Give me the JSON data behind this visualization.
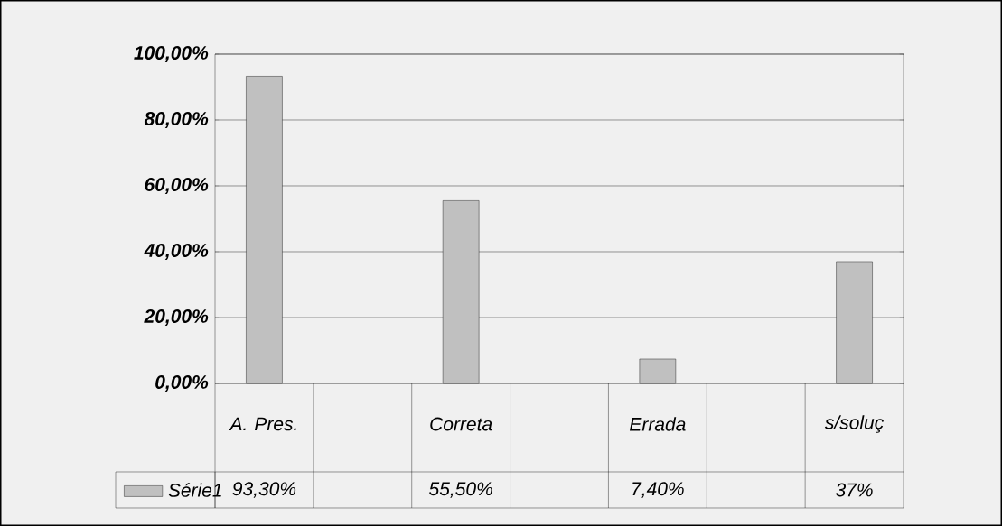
{
  "chart_data": {
    "type": "bar",
    "categories": [
      "A. Pres.",
      null,
      "Correta",
      null,
      "Errada",
      null,
      "s/soluç"
    ],
    "series": [
      {
        "name": "Série1",
        "color": "#c0c0c0",
        "values": [
          93.3,
          null,
          55.5,
          null,
          7.4,
          null,
          37
        ],
        "value_labels": [
          "93,30%",
          null,
          "55,50%",
          null,
          "7,40%",
          null,
          "37%"
        ]
      }
    ],
    "ylim": [
      0,
      100
    ],
    "yticks": [
      {
        "value": 0,
        "label": "0,00%"
      },
      {
        "value": 20,
        "label": "20,00%"
      },
      {
        "value": 40,
        "label": "40,00%"
      },
      {
        "value": 60,
        "label": "60,00%"
      },
      {
        "value": 80,
        "label": "80,00%"
      },
      {
        "value": 100,
        "label": "100,00%"
      }
    ],
    "grid": "y",
    "legend": "bottom left"
  }
}
